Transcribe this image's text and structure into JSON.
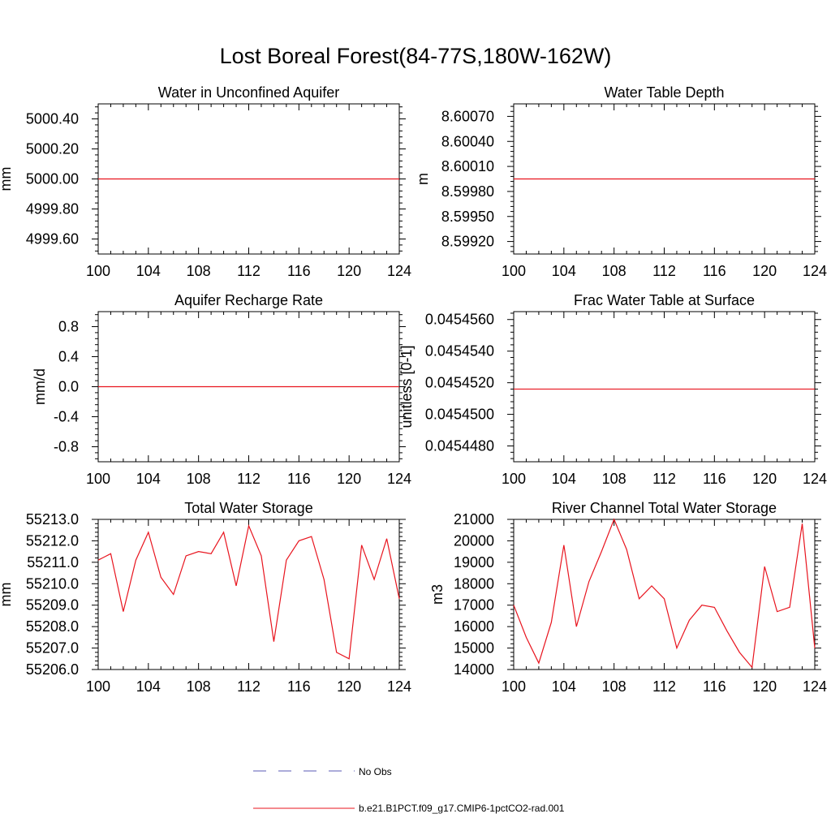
{
  "figure": {
    "title": "Lost Boreal Forest(84-77S,180W-162W)"
  },
  "legend": {
    "entries": [
      {
        "label": "No Obs",
        "color": "#5a5ab4",
        "style": "dashed"
      },
      {
        "label": "b.e21.B1PCT.f09_g17.CMIP6-1pctCO2-rad.001",
        "color": "#e8141e",
        "style": "solid"
      }
    ]
  },
  "chart_data": [
    {
      "type": "line",
      "title": "Water in Unconfined Aquifer",
      "ylabel": "mm",
      "xlim": [
        100,
        124
      ],
      "ylim": [
        4999.5,
        5000.5
      ],
      "xticks": [
        100,
        104,
        108,
        112,
        116,
        120,
        124
      ],
      "yticks": [
        4999.6,
        4999.8,
        5000.0,
        5000.2,
        5000.4
      ],
      "ytick_labels": [
        "4999.60",
        "4999.80",
        "5000.00",
        "5000.20",
        "5000.40"
      ],
      "series": [
        {
          "color": "#e8141e",
          "x": [
            100,
            124
          ],
          "values": [
            5000.0,
            5000.0
          ]
        }
      ]
    },
    {
      "type": "line",
      "title": "Water Table Depth",
      "ylabel": "m",
      "xlim": [
        100,
        124
      ],
      "ylim": [
        8.59905,
        8.60085
      ],
      "xticks": [
        100,
        104,
        108,
        112,
        116,
        120,
        124
      ],
      "yticks": [
        8.5992,
        8.5995,
        8.5998,
        8.6001,
        8.6004,
        8.6007
      ],
      "ytick_labels": [
        "8.59920",
        "8.59950",
        "8.59980",
        "8.60010",
        "8.60040",
        "8.60070"
      ],
      "series": [
        {
          "color": "#e8141e",
          "x": [
            100,
            124
          ],
          "values": [
            8.59995,
            8.59995
          ]
        }
      ]
    },
    {
      "type": "line",
      "title": "Aquifer Recharge Rate",
      "ylabel": "mm/d",
      "xlim": [
        100,
        124
      ],
      "ylim": [
        -1,
        1
      ],
      "xticks": [
        100,
        104,
        108,
        112,
        116,
        120,
        124
      ],
      "yticks": [
        -0.8,
        -0.4,
        0.0,
        0.4,
        0.8
      ],
      "ytick_labels": [
        "-0.8",
        "-0.4",
        "0.0",
        "0.4",
        "0.8"
      ],
      "series": [
        {
          "color": "#e8141e",
          "x": [
            100,
            124
          ],
          "values": [
            0.0,
            0.0
          ]
        }
      ]
    },
    {
      "type": "line",
      "title": "Frac Water Table at Surface",
      "ylabel": "unitless [0-1]",
      "xlim": [
        100,
        124
      ],
      "ylim": [
        0.045447,
        0.0454565
      ],
      "xticks": [
        100,
        104,
        108,
        112,
        116,
        120,
        124
      ],
      "yticks": [
        0.045448,
        0.04545,
        0.045452,
        0.045454,
        0.045456
      ],
      "ytick_labels": [
        "0.0454480",
        "0.0454500",
        "0.0454520",
        "0.0454540",
        "0.0454560"
      ],
      "series": [
        {
          "color": "#e8141e",
          "x": [
            100,
            124
          ],
          "values": [
            0.0454516,
            0.0454516
          ]
        }
      ]
    },
    {
      "type": "line",
      "title": "Total Water Storage",
      "ylabel": "mm",
      "xlim": [
        100,
        124
      ],
      "ylim": [
        55206.0,
        55213.0
      ],
      "xticks": [
        100,
        104,
        108,
        112,
        116,
        120,
        124
      ],
      "yticks": [
        55206,
        55207,
        55208,
        55209,
        55210,
        55211,
        55212,
        55213
      ],
      "ytick_labels": [
        "55206.0",
        "55207.0",
        "55208.0",
        "55209.0",
        "55210.0",
        "55211.0",
        "55212.0",
        "55213.0"
      ],
      "series": [
        {
          "color": "#e8141e",
          "x": [
            100,
            101,
            102,
            103,
            104,
            105,
            106,
            107,
            108,
            109,
            110,
            111,
            112,
            113,
            114,
            115,
            116,
            117,
            118,
            119,
            120,
            121,
            122,
            123,
            124
          ],
          "values": [
            55211.1,
            55211.4,
            55208.7,
            55211.1,
            55212.4,
            55210.3,
            55209.5,
            55211.3,
            55211.5,
            55211.4,
            55212.4,
            55209.9,
            55212.7,
            55211.3,
            55207.3,
            55211.1,
            55212.0,
            55212.2,
            55210.2,
            55206.8,
            55206.5,
            55211.8,
            55210.2,
            55212.1,
            55209.3
          ]
        }
      ]
    },
    {
      "type": "line",
      "title": "River Channel Total Water Storage",
      "ylabel": "m3",
      "xlim": [
        100,
        124
      ],
      "ylim": [
        14000,
        21000
      ],
      "xticks": [
        100,
        104,
        108,
        112,
        116,
        120,
        124
      ],
      "yticks": [
        14000,
        15000,
        16000,
        17000,
        18000,
        19000,
        20000,
        21000
      ],
      "ytick_labels": [
        "14000",
        "15000",
        "16000",
        "17000",
        "18000",
        "19000",
        "20000",
        "21000"
      ],
      "series": [
        {
          "color": "#e8141e",
          "x": [
            100,
            101,
            102,
            103,
            104,
            105,
            106,
            107,
            108,
            109,
            110,
            111,
            112,
            113,
            114,
            115,
            116,
            117,
            118,
            119,
            120,
            121,
            122,
            123,
            124
          ],
          "values": [
            17000,
            15500,
            14300,
            16200,
            19800,
            16000,
            18100,
            19500,
            21000,
            19600,
            17300,
            17900,
            17300,
            15000,
            16300,
            17000,
            16900,
            15800,
            14800,
            14100,
            18800,
            16700,
            16900,
            20800,
            15000
          ]
        }
      ]
    }
  ]
}
